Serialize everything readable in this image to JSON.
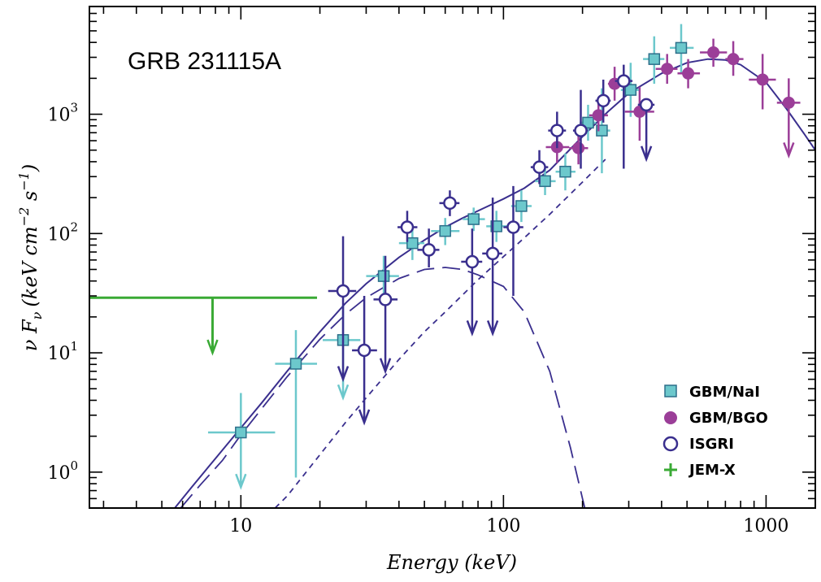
{
  "chart_data": {
    "type": "scatter",
    "title": "GRB 231115A",
    "xlabel": "Energy (keV)",
    "ylabel_parts": {
      "nu": "ν",
      "f": "F",
      "sub": "ν",
      "open": "(keV cm",
      "exp1": "−2",
      "s": " s",
      "exp2": "−1",
      "close": ")"
    },
    "xscale": "log",
    "yscale": "log",
    "xlim": [
      2.65,
      1540
    ],
    "ylim": [
      0.5,
      8000
    ],
    "x_ticks": [
      {
        "value": 10,
        "label": "10"
      },
      {
        "value": 100,
        "label": "100"
      },
      {
        "value": 1000,
        "label": "1000"
      }
    ],
    "y_ticks": [
      {
        "value": 1,
        "base": "10",
        "exp": "0"
      },
      {
        "value": 10,
        "base": "10",
        "exp": "1"
      },
      {
        "value": 100,
        "base": "10",
        "exp": "2"
      },
      {
        "value": 1000,
        "base": "10",
        "exp": "3"
      }
    ],
    "colors": {
      "nai": "#6cc8cc",
      "nai_stroke": "#2d6f8a",
      "bgo": "#9b3e98",
      "isgri": "#3a2f8e",
      "jemx": "#3aaa35",
      "model": "#3a2f8e"
    },
    "legend": {
      "position": "bottom-right",
      "entries": [
        {
          "key": "nai",
          "label": "GBM/NaI"
        },
        {
          "key": "bgo",
          "label": "GBM/BGO"
        },
        {
          "key": "isgri",
          "label": "ISGRI"
        },
        {
          "key": "jemx",
          "label": "JEM-X"
        }
      ]
    },
    "series": [
      {
        "name": "GBM/NaI",
        "key": "nai",
        "points": [
          {
            "x": 10,
            "y": 2.15,
            "xerr": [
              7.5,
              13.5
            ],
            "yerr": [
              1.1,
              4.6
            ],
            "ul": true,
            "arrow_to": 0.75
          },
          {
            "x": 16.2,
            "y": 8.1,
            "xerr": [
              13.5,
              19.5
            ],
            "yerr": [
              0.9,
              15.5
            ]
          },
          {
            "x": 24.5,
            "y": 12.8,
            "xerr": [
              20.5,
              28.5
            ],
            "yerr": [
              5.5,
              25
            ],
            "ul": true,
            "arrow_to": 4.2
          },
          {
            "x": 35,
            "y": 44,
            "xerr": [
              30,
              40
            ],
            "yerr": [
              28,
              65
            ]
          },
          {
            "x": 45,
            "y": 83,
            "xerr": [
              40,
              50
            ],
            "yerr": [
              60,
              110
            ]
          },
          {
            "x": 60,
            "y": 105,
            "xerr": [
              53,
              68
            ],
            "yerr": [
              80,
              135
            ]
          },
          {
            "x": 77,
            "y": 132,
            "xerr": [
              70,
              85
            ],
            "yerr": [
              105,
              165
            ]
          },
          {
            "x": 94,
            "y": 115,
            "xerr": [
              86,
              103
            ],
            "yerr": [
              85,
              155
            ]
          },
          {
            "x": 117,
            "y": 170,
            "xerr": [
              107,
              128
            ],
            "yerr": [
              125,
              230
            ]
          },
          {
            "x": 144,
            "y": 275,
            "xerr": [
              132,
              158
            ],
            "yerr": [
              210,
              360
            ]
          },
          {
            "x": 172,
            "y": 330,
            "xerr": [
              158,
              188
            ],
            "yerr": [
              230,
              470
            ]
          },
          {
            "x": 210,
            "y": 850,
            "xerr": [
              195,
              225
            ],
            "yerr": [
              600,
              1200
            ]
          },
          {
            "x": 237,
            "y": 730,
            "xerr": [
              225,
              255
            ],
            "yerr": [
              320,
              1650
            ]
          },
          {
            "x": 305,
            "y": 1600,
            "xerr": [
              280,
              330
            ],
            "yerr": [
              950,
              2700
            ]
          },
          {
            "x": 375,
            "y": 2900,
            "xerr": [
              340,
              410
            ],
            "yerr": [
              1800,
              4500
            ]
          },
          {
            "x": 475,
            "y": 3600,
            "xerr": [
              430,
              530
            ],
            "yerr": [
              2200,
              5700
            ]
          }
        ]
      },
      {
        "name": "GBM/BGO",
        "key": "bgo",
        "points": [
          {
            "x": 160,
            "y": 530,
            "xerr": [
              145,
              178
            ],
            "yerr": [
              390,
              720
            ]
          },
          {
            "x": 193,
            "y": 520,
            "xerr": [
              178,
              210
            ],
            "yerr": [
              380,
              700
            ]
          },
          {
            "x": 230,
            "y": 980,
            "xerr": [
              212,
              250
            ],
            "yerr": [
              720,
              1350
            ]
          },
          {
            "x": 265,
            "y": 1800,
            "xerr": [
              250,
              282
            ],
            "yerr": [
              1300,
              2500
            ]
          },
          {
            "x": 330,
            "y": 1050,
            "xerr": [
              290,
              375
            ],
            "yerr": [
              600,
              1700
            ]
          },
          {
            "x": 420,
            "y": 2400,
            "xerr": [
              380,
              460
            ],
            "yerr": [
              1800,
              3200
            ]
          },
          {
            "x": 505,
            "y": 2200,
            "xerr": [
              460,
              560
            ],
            "yerr": [
              1650,
              2900
            ]
          },
          {
            "x": 630,
            "y": 3300,
            "xerr": [
              560,
              710
            ],
            "yerr": [
              2500,
              4300
            ]
          },
          {
            "x": 750,
            "y": 2900,
            "xerr": [
              700,
              820
            ],
            "yerr": [
              2100,
              4100
            ]
          },
          {
            "x": 970,
            "y": 1950,
            "xerr": [
              860,
              1090
            ],
            "yerr": [
              1100,
              3200
            ]
          },
          {
            "x": 1220,
            "y": 1250,
            "xerr": [
              1100,
              1350
            ],
            "yerr": [
              450,
              2000
            ],
            "ul": true,
            "arrow_to": 450
          }
        ]
      },
      {
        "name": "ISGRI",
        "key": "isgri",
        "points": [
          {
            "x": 24.5,
            "y": 33,
            "xerr": [
              21.5,
              27.5
            ],
            "yerr": [
              8,
              95
            ],
            "ul": true,
            "arrow_to": 6.0
          },
          {
            "x": 29.5,
            "y": 10.5,
            "xerr": [
              26.5,
              33
            ],
            "yerr": [
              2.5,
              30
            ],
            "ul": true,
            "arrow_to": 2.6
          },
          {
            "x": 35.5,
            "y": 28,
            "xerr": [
              32,
              39.5
            ],
            "yerr": [
              7,
              65
            ],
            "ul": true,
            "arrow_to": 7.0
          },
          {
            "x": 43,
            "y": 113,
            "xerr": [
              39.5,
              47
            ],
            "yerr": [
              85,
              155
            ]
          },
          {
            "x": 52,
            "y": 73,
            "xerr": [
              47,
              57
            ],
            "yerr": [
              52,
              110
            ]
          },
          {
            "x": 62.5,
            "y": 180,
            "xerr": [
              57,
              68
            ],
            "yerr": [
              140,
              230
            ]
          },
          {
            "x": 76,
            "y": 58,
            "xerr": [
              69,
              83
            ],
            "yerr": [
              15,
              110
            ],
            "ul": true,
            "arrow_to": 14.5
          },
          {
            "x": 91,
            "y": 68,
            "xerr": [
              83,
              99
            ],
            "yerr": [
              15,
              200
            ],
            "ul": true,
            "arrow_to": 14.5
          },
          {
            "x": 109,
            "y": 113,
            "xerr": [
              100,
              119
            ],
            "yerr": [
              30,
              250
            ]
          },
          {
            "x": 137,
            "y": 360,
            "xerr": [
              127,
              148
            ],
            "yerr": [
              260,
              500
            ]
          },
          {
            "x": 160,
            "y": 730,
            "xerr": [
              148,
              173
            ],
            "yerr": [
              520,
              1050
            ]
          },
          {
            "x": 197,
            "y": 730,
            "xerr": [
              184,
              210
            ],
            "yerr": [
              350,
              1600
            ]
          },
          {
            "x": 240,
            "y": 1300,
            "xerr": [
              224,
              256
            ],
            "yerr": [
              850,
              1950
            ]
          },
          {
            "x": 287,
            "y": 1900,
            "xerr": [
              266,
              310
            ],
            "yerr": [
              350,
              2600
            ]
          },
          {
            "x": 350,
            "y": 1200,
            "xerr": [
              325,
              376
            ],
            "yerr": [
              420,
              1200
            ],
            "ul": true,
            "arrow_to": 420
          }
        ]
      },
      {
        "name": "JEM-X",
        "key": "jemx",
        "points": [
          {
            "x": 7.8,
            "y": 29,
            "xerr": [
              2.65,
              19.5
            ],
            "ul": true,
            "arrow_to": 10
          }
        ]
      }
    ],
    "model": {
      "total": [
        [
          5.6,
          0.5
        ],
        [
          6.5,
          0.75
        ],
        [
          8,
          1.3
        ],
        [
          10,
          2.35
        ],
        [
          12,
          3.8
        ],
        [
          15,
          7
        ],
        [
          20,
          15
        ],
        [
          25,
          26
        ],
        [
          30,
          38
        ],
        [
          40,
          63
        ],
        [
          50,
          88
        ],
        [
          60,
          113
        ],
        [
          70,
          135
        ],
        [
          85,
          165
        ],
        [
          100,
          195
        ],
        [
          120,
          240
        ],
        [
          150,
          340
        ],
        [
          200,
          650
        ],
        [
          250,
          1050
        ],
        [
          300,
          1500
        ],
        [
          400,
          2200
        ],
        [
          500,
          2700
        ],
        [
          600,
          2900
        ],
        [
          700,
          2850
        ],
        [
          800,
          2600
        ],
        [
          1000,
          1850
        ],
        [
          1200,
          1100
        ],
        [
          1400,
          680
        ],
        [
          1540,
          500
        ]
      ],
      "component_1": [
        [
          5.9,
          0.5
        ],
        [
          7,
          0.78
        ],
        [
          8.5,
          1.25
        ],
        [
          10,
          2.05
        ],
        [
          12,
          3.4
        ],
        [
          15,
          6.3
        ],
        [
          20,
          13
        ],
        [
          25,
          21
        ],
        [
          30,
          29
        ],
        [
          40,
          42
        ],
        [
          50,
          50
        ],
        [
          60,
          52
        ],
        [
          70,
          50
        ],
        [
          80,
          45
        ],
        [
          100,
          36
        ],
        [
          120,
          22
        ],
        [
          150,
          7
        ],
        [
          180,
          1.6
        ],
        [
          200,
          0.6
        ],
        [
          204,
          0.5
        ]
      ],
      "component_2": [
        [
          13.5,
          0.5
        ],
        [
          15,
          0.63
        ],
        [
          20,
          1.4
        ],
        [
          25,
          2.6
        ],
        [
          30,
          4.2
        ],
        [
          40,
          8.8
        ],
        [
          50,
          15
        ],
        [
          60,
          22
        ],
        [
          80,
          41
        ],
        [
          100,
          64
        ],
        [
          120,
          92
        ],
        [
          150,
          145
        ],
        [
          200,
          270
        ],
        [
          250,
          440
        ]
      ]
    }
  }
}
